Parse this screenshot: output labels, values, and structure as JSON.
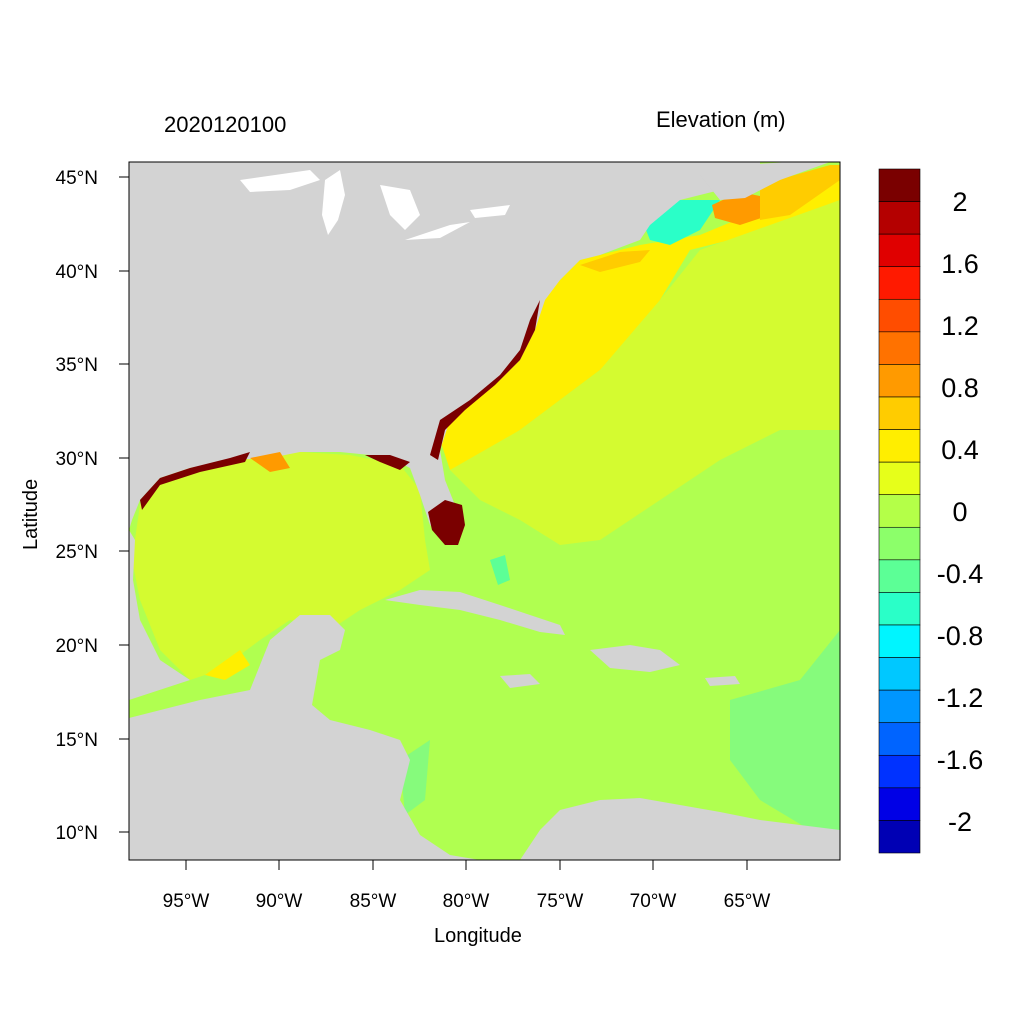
{
  "titles": {
    "left": "2020120100",
    "right": "Elevation (m)"
  },
  "axes": {
    "xlabel": "Longitude",
    "ylabel": "Latitude",
    "x_ticks": [
      "95°W",
      "90°W",
      "85°W",
      "80°W",
      "75°W",
      "70°W",
      "65°W"
    ],
    "y_ticks": [
      "45°N",
      "40°N",
      "35°N",
      "30°N",
      "25°N",
      "20°N",
      "15°N",
      "10°N"
    ],
    "x_range_deg": [
      -98,
      -60
    ],
    "y_range_deg": [
      8.5,
      46
    ]
  },
  "colorbar": {
    "labels": [
      "2",
      "1.6",
      "1.2",
      "0.8",
      "0.4",
      "0",
      "-0.4",
      "-0.8",
      "-1.2",
      "-1.6",
      "-2"
    ],
    "colors": [
      "#7a0000",
      "#b40000",
      "#e00000",
      "#ff1a00",
      "#ff4d00",
      "#ff7200",
      "#ff9a00",
      "#ffcc00",
      "#ffee00",
      "#e6ff1a",
      "#b4ff48",
      "#8cff6a",
      "#5cff96",
      "#2affc8",
      "#00f5ff",
      "#00c8ff",
      "#0096ff",
      "#0064ff",
      "#0032ff",
      "#0000e6",
      "#0000b4"
    ]
  },
  "map": {
    "land_color": "#d3d3d3",
    "ocean_base_color": "#c8ff40",
    "legend": "top-right"
  }
}
